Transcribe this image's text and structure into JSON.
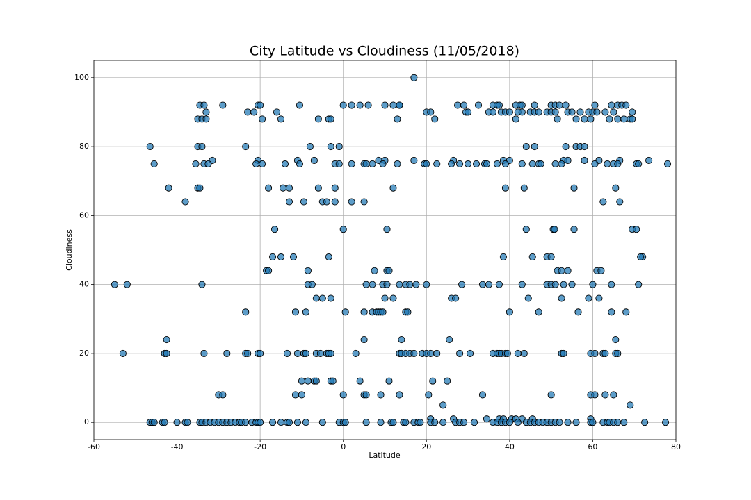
{
  "chart_data": {
    "type": "scatter",
    "title": "City Latitude vs Cloudiness (11/05/2018)",
    "x_label": "Latitude",
    "y_label": "Cloudiness",
    "color": "#1f77b4",
    "grid": true,
    "xlim": [
      -60,
      80
    ],
    "ylim": [
      -5,
      105
    ],
    "xticks": [
      -60,
      -40,
      -20,
      0,
      20,
      40,
      60,
      80
    ],
    "yticks": [
      0,
      20,
      40,
      60,
      80,
      100
    ],
    "x": [
      17,
      -34.5,
      -33.5,
      -29,
      -20.5,
      -20,
      -10.5,
      0,
      2,
      4,
      6,
      10,
      12,
      13.5,
      13.5,
      27.5,
      29,
      32.5,
      36,
      37,
      37.5,
      41.5,
      42.5,
      43,
      46,
      50,
      51,
      52,
      53.5,
      60.5,
      64.5,
      66,
      67,
      68,
      -33,
      -23,
      -21.5,
      -16,
      20,
      21,
      29.5,
      30,
      35,
      36,
      38,
      39,
      40,
      42,
      43,
      45,
      46,
      47,
      49,
      50,
      51,
      54,
      55,
      57,
      59,
      60,
      61,
      63,
      65,
      69.5,
      -35,
      -34,
      -33,
      -19.5,
      -15,
      -6,
      -3.5,
      -3,
      13,
      22,
      41.5,
      51.5,
      56,
      58,
      59.5,
      64,
      66,
      67.5,
      69,
      69.5,
      -46.5,
      -35,
      -34,
      -23.5,
      -8,
      -3,
      -1,
      44,
      46,
      53.5,
      56,
      57,
      58,
      -31.5,
      -20.5,
      -11,
      -7,
      8.5,
      10,
      17,
      26.5,
      38.5,
      40,
      53,
      54,
      58,
      61.5,
      66.5,
      73.5,
      -45.5,
      -35.5,
      -33.5,
      -32.5,
      -21,
      -19.5,
      -14,
      -10.5,
      -2,
      -1,
      2,
      5,
      5.5,
      7,
      9.5,
      13,
      19.5,
      20,
      22.5,
      26,
      28,
      30,
      32,
      34,
      34.5,
      37,
      39,
      43,
      45.5,
      47,
      47.5,
      51,
      52.5,
      60.5,
      63.5,
      65,
      66,
      70.5,
      71,
      78,
      -42,
      -35,
      -34.5,
      -18,
      -14.5,
      -13,
      -6,
      -2,
      12,
      39,
      43.5,
      55.5,
      65.5,
      -38,
      -13,
      -9.5,
      -5,
      -4,
      -2,
      2,
      5,
      62.5,
      66.5,
      -16.5,
      0,
      10.5,
      44,
      50.5,
      50.8,
      55.5,
      69.5,
      70.5,
      -17,
      -15,
      -12,
      -3.5,
      38.5,
      45.5,
      49,
      50,
      72,
      71.5,
      -18.5,
      -18,
      -8.5,
      7.5,
      10.5,
      11,
      51.5,
      52.5,
      54,
      61,
      62,
      -55,
      -52,
      -34,
      -8.5,
      -7.5,
      5.5,
      7,
      9.5,
      10.5,
      13.5,
      15,
      16,
      17.5,
      20,
      28.5,
      33.5,
      35,
      37.5,
      43,
      49,
      50,
      51,
      53,
      55,
      60,
      64.5,
      71,
      -6.5,
      -5,
      -3,
      10,
      12,
      26,
      27,
      44.5,
      52.5,
      59,
      61.5,
      -23.5,
      -11.5,
      -9,
      0.5,
      5,
      7,
      8,
      8.5,
      9,
      9.5,
      15,
      15.5,
      40,
      47,
      56.5,
      64.5,
      68,
      -42.5,
      5,
      14,
      25.5,
      65.5,
      -53,
      -43,
      -42.5,
      -33.5,
      -28,
      -23.5,
      -23,
      -20.5,
      -20,
      -13.5,
      -11,
      -9.5,
      -9,
      -6.5,
      -5.5,
      -4,
      -3.5,
      -3,
      3,
      13.5,
      14,
      15,
      16,
      17,
      19,
      20,
      21,
      22.5,
      28,
      30.5,
      36,
      37,
      37.5,
      38,
      39,
      39.5,
      42,
      43.5,
      52.5,
      53,
      59.5,
      60.5,
      62.5,
      63,
      65.5,
      66,
      -10,
      -8.5,
      -7,
      -6.5,
      -3,
      -2.5,
      4,
      11,
      21.5,
      25,
      -30,
      -29,
      -11.5,
      -10,
      0,
      5,
      5.5,
      9,
      13.5,
      20.5,
      33.5,
      50,
      59.5,
      60.5,
      63,
      65,
      24,
      69,
      21,
      26.5,
      34.5,
      37.5,
      38.5,
      40.5,
      41.5,
      43,
      45.5,
      59.5,
      -46.5,
      -46,
      -45.5,
      -43.5,
      -43,
      -40,
      -38,
      -37.5,
      -34.5,
      -34,
      -33,
      -32,
      -31,
      -30,
      -29,
      -28,
      -27,
      -26,
      -25,
      -24.5,
      -23.5,
      -22,
      -21,
      -20.5,
      -20,
      -17,
      -15,
      -13.5,
      -13,
      -11,
      -9,
      -5,
      -1,
      0,
      0.5,
      5.5,
      9,
      11.5,
      12,
      14.5,
      15,
      17,
      18,
      18.5,
      21,
      22,
      24,
      27,
      28,
      29,
      31.5,
      36,
      37,
      38,
      39,
      40,
      42,
      44,
      45,
      46,
      47,
      48,
      49,
      50,
      51,
      52,
      54,
      56,
      59.5,
      60,
      62.5,
      63.5,
      64,
      65,
      66,
      67.5,
      72.5,
      77.5
    ],
    "values": [
      100,
      92,
      92,
      92,
      92,
      92,
      92,
      92,
      92,
      92,
      92,
      92,
      92,
      92,
      92,
      92,
      92,
      92,
      92,
      92,
      92,
      92,
      92,
      92,
      92,
      92,
      92,
      92,
      92,
      92,
      92,
      92,
      92,
      92,
      90,
      90,
      90,
      90,
      90,
      90,
      90,
      90,
      90,
      90,
      90,
      90,
      90,
      90,
      90,
      90,
      90,
      90,
      90,
      90,
      90,
      90,
      90,
      90,
      90,
      90,
      90,
      90,
      90,
      90,
      88,
      88,
      88,
      88,
      88,
      88,
      88,
      88,
      88,
      88,
      88,
      88,
      88,
      88,
      88,
      88,
      88,
      88,
      88,
      88,
      80,
      80,
      80,
      80,
      80,
      80,
      80,
      80,
      80,
      80,
      80,
      80,
      80,
      76,
      76,
      76,
      76,
      76,
      76,
      76,
      76,
      76,
      76,
      76,
      76,
      76,
      76,
      76,
      76,
      75,
      75,
      75,
      75,
      75,
      75,
      75,
      75,
      75,
      75,
      75,
      75,
      75,
      75,
      75,
      75,
      75,
      75,
      75,
      75,
      75,
      75,
      75,
      75,
      75,
      75,
      75,
      75,
      75,
      75,
      75,
      75,
      75,
      75,
      75,
      75,
      75,
      75,
      75,
      75,
      68,
      68,
      68,
      68,
      68,
      68,
      68,
      68,
      68,
      68,
      68,
      68,
      68,
      64,
      64,
      64,
      64,
      64,
      64,
      64,
      64,
      64,
      64,
      56,
      56,
      56,
      56,
      56,
      56,
      56,
      56,
      56,
      48,
      48,
      48,
      48,
      48,
      48,
      48,
      48,
      48,
      48,
      44,
      44,
      44,
      44,
      44,
      44,
      44,
      44,
      44,
      44,
      44,
      40,
      40,
      40,
      40,
      40,
      40,
      40,
      40,
      40,
      40,
      40,
      40,
      40,
      40,
      40,
      40,
      40,
      40,
      40,
      40,
      40,
      40,
      40,
      40,
      40,
      40,
      40,
      36,
      36,
      36,
      36,
      36,
      36,
      36,
      36,
      36,
      36,
      36,
      32,
      32,
      32,
      32,
      32,
      32,
      32,
      32,
      32,
      32,
      32,
      32,
      32,
      32,
      32,
      32,
      32,
      24,
      24,
      24,
      24,
      24,
      20,
      20,
      20,
      20,
      20,
      20,
      20,
      20,
      20,
      20,
      20,
      20,
      20,
      20,
      20,
      20,
      20,
      20,
      20,
      20,
      20,
      20,
      20,
      20,
      20,
      20,
      20,
      20,
      20,
      20,
      20,
      20,
      20,
      20,
      20,
      20,
      20,
      20,
      20,
      20,
      20,
      20,
      20,
      20,
      20,
      20,
      12,
      12,
      12,
      12,
      12,
      12,
      12,
      12,
      12,
      12,
      8,
      8,
      8,
      8,
      8,
      8,
      8,
      8,
      8,
      8,
      8,
      8,
      8,
      8,
      8,
      8,
      5,
      5,
      1,
      1,
      1,
      1,
      1,
      1,
      1,
      1,
      1,
      1,
      0,
      0,
      0,
      0,
      0,
      0,
      0,
      0,
      0,
      0,
      0,
      0,
      0,
      0,
      0,
      0,
      0,
      0,
      0,
      0,
      0,
      0,
      0,
      0,
      0,
      0,
      0,
      0,
      0,
      0,
      0,
      0,
      0,
      0,
      0,
      0,
      0,
      0,
      0,
      0,
      0,
      0,
      0,
      0,
      0,
      0,
      0,
      0,
      0,
      0,
      0,
      0,
      0,
      0,
      0,
      0,
      0,
      0,
      0,
      0,
      0,
      0,
      0,
      0,
      0,
      0,
      0,
      0,
      0,
      0,
      0,
      0,
      0,
      0,
      0,
      0,
      0,
      0
    ]
  }
}
